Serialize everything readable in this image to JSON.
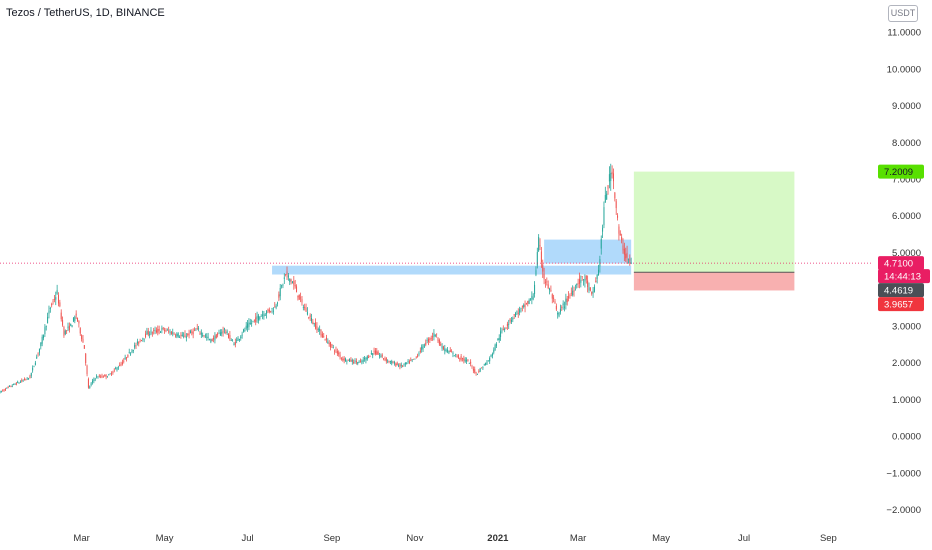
{
  "header": {
    "title": "Tezos / TetherUS, 1D, BINANCE",
    "currency_button": "USDT"
  },
  "chart_data": {
    "type": "candlestick",
    "y_ticks": [
      "11.0000",
      "10.0000",
      "9.0000",
      "8.0000",
      "7.0000",
      "6.0000",
      "5.0000",
      "4.0000",
      "3.0000",
      "2.0000",
      "1.0000",
      "0.0000",
      "−1.0000",
      "−2.0000"
    ],
    "y_tick_values": [
      11,
      10,
      9,
      8,
      7,
      6,
      5,
      4,
      3,
      2,
      1,
      0,
      -1,
      -2
    ],
    "ylim": [
      -2.5,
      11.6
    ],
    "x_ticks": [
      "Mar",
      "May",
      "Jul",
      "Sep",
      "Nov",
      "2021",
      "Mar",
      "May",
      "Jul",
      "Sep"
    ],
    "x_tick_bold": [
      false,
      false,
      false,
      false,
      false,
      true,
      false,
      false,
      false,
      false
    ],
    "x_range_days": [
      0,
      619
    ],
    "x_tick_days": [
      60,
      121,
      182,
      244,
      305,
      366,
      425,
      486,
      547,
      609
    ],
    "last_price": 4.71,
    "price_labels": {
      "target": {
        "text": "7.2009",
        "value": 7.2009,
        "color": "#58e000",
        "text_color": "#131722"
      },
      "last": {
        "text": "4.7100",
        "value": 4.71,
        "color": "#e91e63",
        "text_color": "#ffffff"
      },
      "countdown": {
        "text": "14:44:13",
        "value": 4.36,
        "color": "#e91e63",
        "text_color": "#ffffff"
      },
      "entry": {
        "text": "4.4619",
        "value": 4.4619,
        "color": "#4b4f56",
        "text_color": "#ffffff"
      },
      "stop": {
        "text": "3.9657",
        "value": 3.9657,
        "color": "#f0353e",
        "text_color": "#ffffff"
      }
    },
    "zones": [
      {
        "from_day": 200,
        "to_day": 464,
        "low": 4.4,
        "high": 4.64,
        "color": "#90caf9"
      },
      {
        "from_day": 400,
        "to_day": 464,
        "low": 4.7,
        "high": 5.35,
        "color": "#90caf9"
      }
    ],
    "position": {
      "from_day": 466,
      "to_day": 584,
      "entry": 4.4619,
      "target": 7.2009,
      "stop": 3.9657,
      "profit_color": "#d7f9c6",
      "loss_color": "#f8b0b0"
    },
    "up_color": "#26a69a",
    "down_color": "#ef5350",
    "anchors": [
      [
        0,
        1.2
      ],
      [
        10,
        1.4
      ],
      [
        22,
        1.6
      ],
      [
        30,
        2.5
      ],
      [
        37,
        3.5
      ],
      [
        42,
        3.9
      ],
      [
        47,
        2.8
      ],
      [
        52,
        3.0
      ],
      [
        56,
        3.3
      ],
      [
        62,
        2.4
      ],
      [
        65,
        1.3
      ],
      [
        70,
        1.6
      ],
      [
        80,
        1.65
      ],
      [
        90,
        2.0
      ],
      [
        98,
        2.4
      ],
      [
        108,
        2.8
      ],
      [
        120,
        2.9
      ],
      [
        135,
        2.7
      ],
      [
        145,
        2.9
      ],
      [
        155,
        2.6
      ],
      [
        165,
        2.9
      ],
      [
        172,
        2.5
      ],
      [
        182,
        3.0
      ],
      [
        192,
        3.3
      ],
      [
        202,
        3.5
      ],
      [
        210,
        4.4
      ],
      [
        215,
        4.2
      ],
      [
        222,
        3.6
      ],
      [
        230,
        3.1
      ],
      [
        240,
        2.6
      ],
      [
        252,
        2.1
      ],
      [
        265,
        2.0
      ],
      [
        275,
        2.3
      ],
      [
        285,
        2.05
      ],
      [
        295,
        1.9
      ],
      [
        305,
        2.1
      ],
      [
        312,
        2.5
      ],
      [
        320,
        2.8
      ],
      [
        325,
        2.4
      ],
      [
        335,
        2.2
      ],
      [
        345,
        2.0
      ],
      [
        350,
        1.7
      ],
      [
        360,
        2.1
      ],
      [
        368,
        2.8
      ],
      [
        378,
        3.3
      ],
      [
        385,
        3.5
      ],
      [
        392,
        3.8
      ],
      [
        396,
        5.3
      ],
      [
        400,
        4.3
      ],
      [
        405,
        3.9
      ],
      [
        410,
        3.3
      ],
      [
        415,
        3.6
      ],
      [
        420,
        3.9
      ],
      [
        425,
        4.2
      ],
      [
        430,
        4.3
      ],
      [
        435,
        3.8
      ],
      [
        440,
        4.5
      ],
      [
        445,
        6.5
      ],
      [
        450,
        7.3
      ],
      [
        455,
        5.5
      ],
      [
        460,
        4.9
      ],
      [
        464,
        4.71
      ]
    ]
  }
}
